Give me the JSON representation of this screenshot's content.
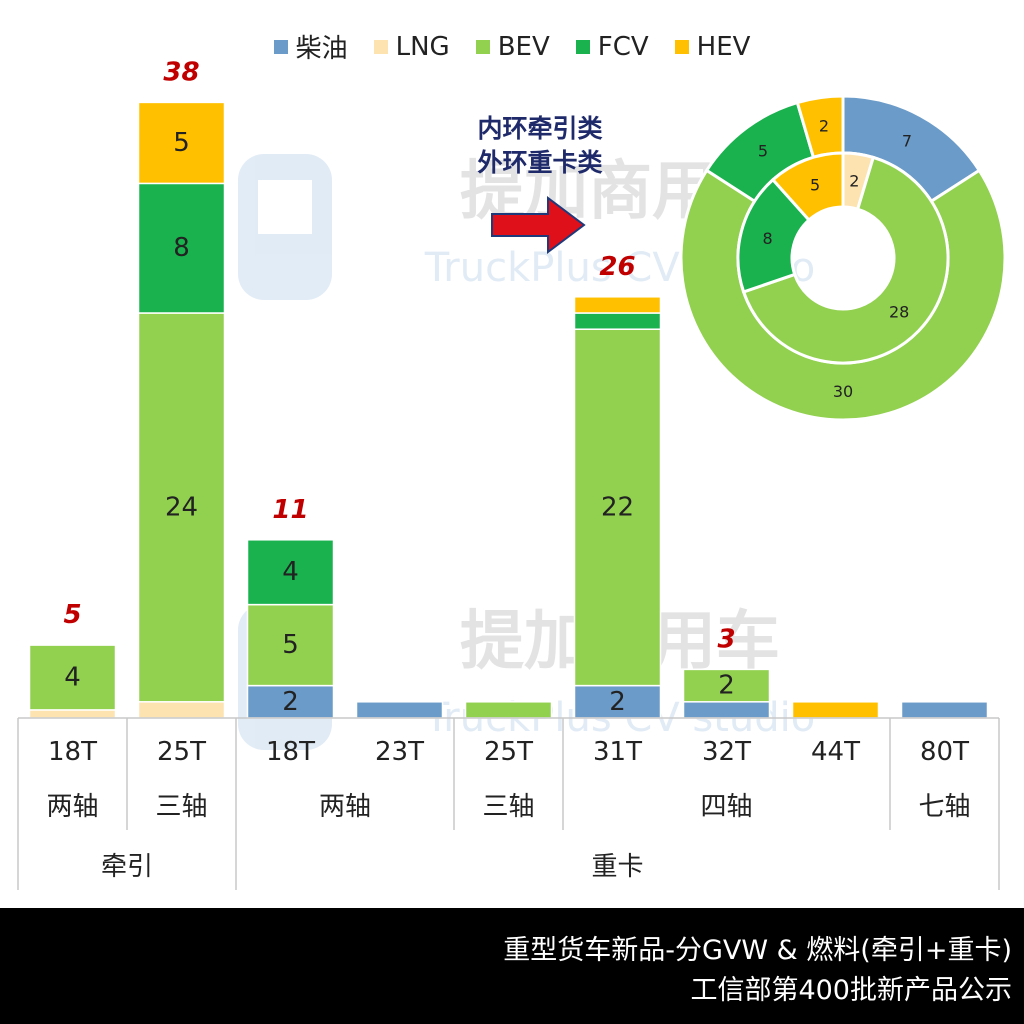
{
  "chart_data": [
    {
      "type": "bar",
      "stacked": true,
      "legend": [
        "柴油",
        "LNG",
        "BEV",
        "FCV",
        "HEV"
      ],
      "legend_position": "top",
      "colors": {
        "柴油": "#6b9bc8",
        "LNG": "#fce3b0",
        "BEV": "#92d050",
        "FCV": "#19b24e",
        "HEV": "#ffc000"
      },
      "groups": [
        {
          "label": "牵引",
          "subgroups": [
            {
              "label": "两轴",
              "categories": [
                {
                  "x": "18T",
                  "total": 5,
                  "values": {
                    "柴油": 0,
                    "LNG": 0.5,
                    "BEV": 4,
                    "FCV": 0,
                    "HEV": 0
                  },
                  "labels": {
                    "BEV": "4"
                  }
                }
              ]
            },
            {
              "label": "三轴",
              "categories": [
                {
                  "x": "25T",
                  "total": 38,
                  "values": {
                    "柴油": 0,
                    "LNG": 1,
                    "BEV": 24,
                    "FCV": 8,
                    "HEV": 5
                  },
                  "labels": {
                    "BEV": "24",
                    "FCV": "8",
                    "HEV": "5"
                  }
                }
              ]
            }
          ]
        },
        {
          "label": "重卡",
          "subgroups": [
            {
              "label": "两轴",
              "categories": [
                {
                  "x": "18T",
                  "total": 11,
                  "values": {
                    "柴油": 2,
                    "LNG": 0,
                    "BEV": 5,
                    "FCV": 4,
                    "HEV": 0
                  },
                  "labels": {
                    "柴油": "2",
                    "BEV": "5",
                    "FCV": "4"
                  }
                },
                {
                  "x": "23T",
                  "total": 1,
                  "values": {
                    "柴油": 1,
                    "LNG": 0,
                    "BEV": 0,
                    "FCV": 0,
                    "HEV": 0
                  },
                  "labels": {}
                }
              ]
            },
            {
              "label": "三轴",
              "categories": [
                {
                  "x": "25T",
                  "total": 1,
                  "values": {
                    "柴油": 0,
                    "LNG": 0,
                    "BEV": 1,
                    "FCV": 0,
                    "HEV": 0
                  },
                  "labels": {}
                }
              ]
            },
            {
              "label": "四轴",
              "categories": [
                {
                  "x": "31T",
                  "total": 26,
                  "values": {
                    "柴油": 2,
                    "LNG": 0,
                    "BEV": 22,
                    "FCV": 1,
                    "HEV": 1
                  },
                  "labels": {
                    "柴油": "2",
                    "BEV": "22"
                  }
                },
                {
                  "x": "32T",
                  "total": 3,
                  "values": {
                    "柴油": 1,
                    "LNG": 0,
                    "BEV": 2,
                    "FCV": 0,
                    "HEV": 0
                  },
                  "labels": {
                    "BEV": "2"
                  }
                },
                {
                  "x": "44T",
                  "total": 1,
                  "values": {
                    "柴油": 0,
                    "LNG": 0,
                    "BEV": 0,
                    "FCV": 0,
                    "HEV": 1
                  },
                  "labels": {}
                }
              ]
            },
            {
              "label": "七轴",
              "categories": [
                {
                  "x": "80T",
                  "total": 1,
                  "values": {
                    "柴油": 1,
                    "LNG": 0,
                    "BEV": 0,
                    "FCV": 0,
                    "HEV": 0
                  },
                  "labels": {}
                }
              ]
            }
          ]
        }
      ],
      "total_labels": [
        {
          "x": "18T",
          "group": "牵引",
          "text": "5"
        },
        {
          "x": "25T",
          "group": "牵引",
          "text": "38"
        },
        {
          "x": "18T",
          "group": "重卡",
          "text": "11"
        },
        {
          "x": "31T",
          "group": "重卡",
          "text": "26"
        },
        {
          "x": "32T",
          "group": "重卡",
          "text": "3"
        }
      ]
    },
    {
      "type": "pie",
      "subtype": "doughnut",
      "inner_ring_label": "内环牵引类",
      "outer_ring_label": "外环重卡类",
      "inner": [
        {
          "name": "柴油",
          "value": 0,
          "label": ""
        },
        {
          "name": "LNG",
          "value": 2,
          "label": "2"
        },
        {
          "name": "BEV",
          "value": 28,
          "label": "28"
        },
        {
          "name": "FCV",
          "value": 8,
          "label": "8"
        },
        {
          "name": "HEV",
          "value": 5,
          "label": "5"
        }
      ],
      "outer": [
        {
          "name": "柴油",
          "value": 7,
          "label": "7"
        },
        {
          "name": "LNG",
          "value": 0,
          "label": ""
        },
        {
          "name": "BEV",
          "value": 30,
          "label": "30"
        },
        {
          "name": "FCV",
          "value": 5,
          "label": "5"
        },
        {
          "name": "HEV",
          "value": 2,
          "label": "2"
        }
      ]
    }
  ],
  "annotation": {
    "line1": "内环牵引类",
    "line2": "外环重卡类"
  },
  "watermark": {
    "brand": "提加商用车",
    "sub": "TruckPlus CV studio"
  },
  "footer": {
    "line1": "重型货车新品-分GVW & 燃料(牵引+重卡)",
    "line2": "工信部第400批新产品公示"
  }
}
